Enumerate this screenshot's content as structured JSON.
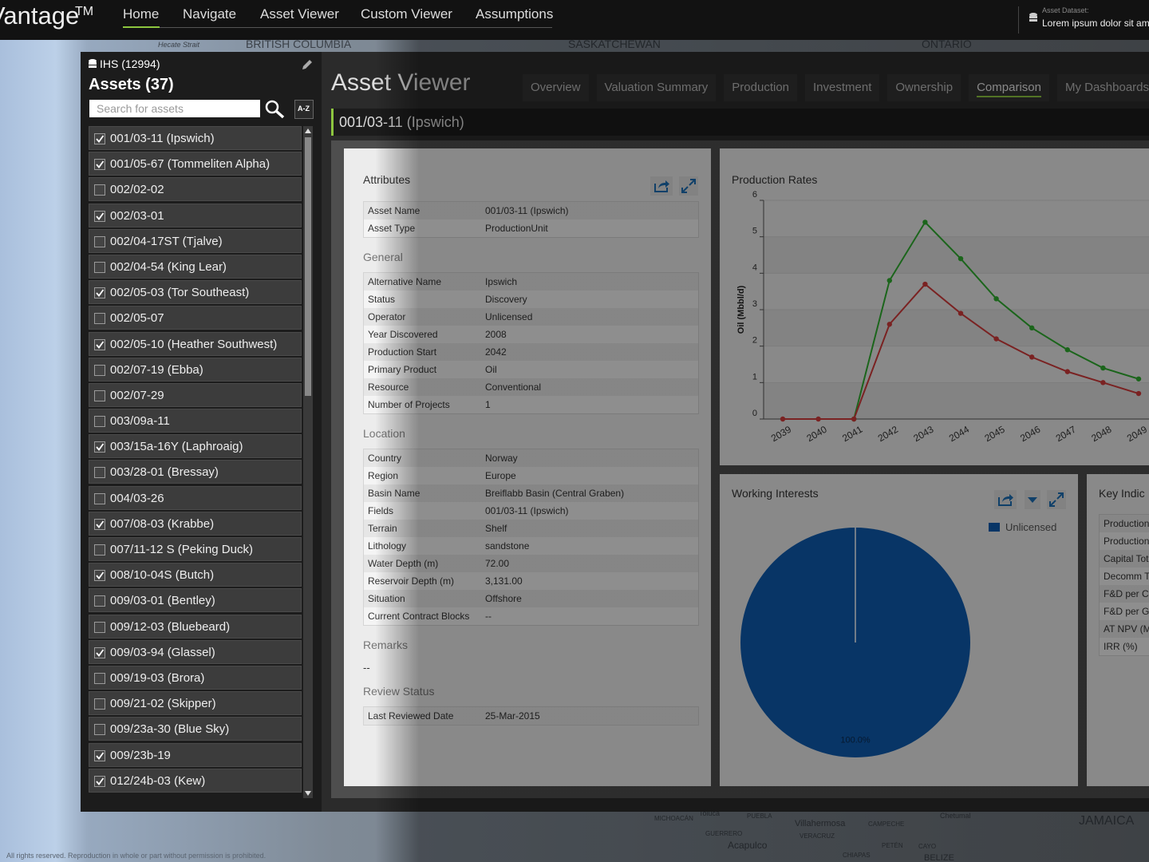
{
  "nav": {
    "brand": "Vantage",
    "trademark": "TM",
    "items": [
      "Home",
      "Navigate",
      "Asset Viewer",
      "Custom Viewer",
      "Assumptions"
    ],
    "active_item": 0,
    "dataset_label": "Asset Dataset:",
    "dataset_value": "Lorem ipsum dolor sit am"
  },
  "map_labels": [
    "Hecate Strait",
    "BRITISH COLUMBIA",
    "SASKATCHEWAN",
    "ONTARIO",
    "MICHOACÁN",
    "Toluca",
    "PUEBLA",
    "Villahermosa",
    "CAMPECHE",
    "Chetumal",
    "JAMAICA",
    "GUERRERO",
    "VERACRUZ",
    "Acapulco",
    "PETÉN",
    "CAYO",
    "CHIAPAS",
    "BELIZE"
  ],
  "footer": "All rights reserved. Reproduction in whole or part without permission is prohibited.",
  "sidebar": {
    "source": "IHS (12994)",
    "title": "Assets (37)",
    "search_placeholder": "Search for assets",
    "sort_button": "A-Z",
    "assets": [
      {
        "label": "001/03-11 (Ipswich)",
        "checked": true
      },
      {
        "label": "001/05-67 (Tommeliten Alpha)",
        "checked": true
      },
      {
        "label": "002/02-02",
        "checked": false
      },
      {
        "label": "002/03-01",
        "checked": true
      },
      {
        "label": "002/04-17ST (Tjalve)",
        "checked": false
      },
      {
        "label": "002/04-54 (King Lear)",
        "checked": false
      },
      {
        "label": "002/05-03 (Tor Southeast)",
        "checked": true
      },
      {
        "label": "002/05-07",
        "checked": false
      },
      {
        "label": "002/05-10 (Heather Southwest)",
        "checked": true
      },
      {
        "label": "002/07-19 (Ebba)",
        "checked": false
      },
      {
        "label": "002/07-29",
        "checked": false
      },
      {
        "label": "003/09a-11",
        "checked": false
      },
      {
        "label": "003/15a-16Y (Laphroaig)",
        "checked": true
      },
      {
        "label": "003/28-01 (Bressay)",
        "checked": false
      },
      {
        "label": "004/03-26",
        "checked": false
      },
      {
        "label": "007/08-03 (Krabbe)",
        "checked": true
      },
      {
        "label": "007/11-12 S (Peking Duck)",
        "checked": false
      },
      {
        "label": "008/10-04S (Butch)",
        "checked": true
      },
      {
        "label": "009/03-01 (Bentley)",
        "checked": false
      },
      {
        "label": "009/12-03 (Bluebeard)",
        "checked": false
      },
      {
        "label": "009/03-94 (Glassel)",
        "checked": true
      },
      {
        "label": "009/19-03 (Brora)",
        "checked": false
      },
      {
        "label": "009/21-02 (Skipper)",
        "checked": false
      },
      {
        "label": "009/23a-30 (Blue Sky)",
        "checked": false
      },
      {
        "label": "009/23b-19",
        "checked": true
      },
      {
        "label": "012/24b-03 (Kew)",
        "checked": true
      }
    ]
  },
  "viewer": {
    "title": "Asset Viewer",
    "tabs": [
      "Overview",
      "Valuation Summary",
      "Production",
      "Investment",
      "Ownership",
      "Comparison",
      "My Dashboards"
    ],
    "active_tab": 5,
    "asset_heading": "001/03-11 (Ipswich)"
  },
  "attributes": {
    "title": "Attributes",
    "blocks": [
      {
        "rows": [
          [
            "Asset Name",
            "001/03-11 (Ipswich)"
          ],
          [
            "Asset Type",
            "ProductionUnit"
          ]
        ]
      },
      {
        "title": "General",
        "rows": [
          [
            "Alternative Name",
            "Ipswich"
          ],
          [
            "Status",
            "Discovery"
          ],
          [
            "Operator",
            "Unlicensed"
          ],
          [
            "Year Discovered",
            "2008"
          ],
          [
            "Production Start",
            "2042"
          ],
          [
            "Primary Product",
            "Oil"
          ],
          [
            "Resource",
            "Conventional"
          ],
          [
            "Number of Projects",
            "1"
          ]
        ]
      },
      {
        "title": "Location",
        "rows": [
          [
            "Country",
            "Norway"
          ],
          [
            "Region",
            "Europe"
          ],
          [
            "Basin Name",
            "Breiflabb Basin (Central Graben)"
          ],
          [
            "Fields",
            "001/03-11 (Ipswich)"
          ],
          [
            "Terrain",
            "Shelf"
          ],
          [
            "Lithology",
            "sandstone"
          ],
          [
            "Water Depth (m)",
            "72.00"
          ],
          [
            "Reservoir Depth (m)",
            "3,131.00"
          ],
          [
            "Situation",
            "Offshore"
          ],
          [
            "Current Contract Blocks",
            "--"
          ]
        ]
      },
      {
        "title": "Remarks",
        "text": "--"
      },
      {
        "title": "Review Status",
        "rows": [
          [
            "Last Reviewed Date",
            "25-Mar-2015"
          ]
        ]
      }
    ]
  },
  "key_indicators": {
    "title": "Key Indic",
    "rows": [
      "Production",
      "Production",
      "Capital Tot",
      "Decomm T",
      "F&D per C",
      "F&D per G",
      "AT NPV (M",
      "IRR (%)"
    ]
  },
  "chart_data": [
    {
      "type": "line",
      "title": "Production Rates",
      "y_label": "Oil (Mbbl/d)",
      "categories": [
        "2039",
        "2040",
        "2041",
        "2042",
        "2043",
        "2044",
        "2045",
        "2046",
        "2047",
        "2048",
        "2049"
      ],
      "series": [
        {
          "color": "#2fae2f",
          "values": [
            null,
            null,
            0,
            3.8,
            5.4,
            4.4,
            3.3,
            2.5,
            1.9,
            1.4,
            1.1
          ]
        },
        {
          "color": "#d23a3a",
          "values": [
            0,
            0,
            0,
            2.6,
            3.7,
            2.9,
            2.2,
            1.7,
            1.3,
            1.0,
            0.7
          ]
        }
      ],
      "ylim": [
        0,
        6
      ],
      "yticks": [
        0,
        1,
        2,
        3,
        4,
        5,
        6
      ],
      "grid": true
    },
    {
      "type": "pie",
      "title": "Working Interests",
      "categories": [
        "Unlicensed"
      ],
      "values": [
        100
      ],
      "value_labels": [
        "100.0%"
      ],
      "colors": [
        "#0e5bb0"
      ],
      "legend": "top-right"
    }
  ]
}
